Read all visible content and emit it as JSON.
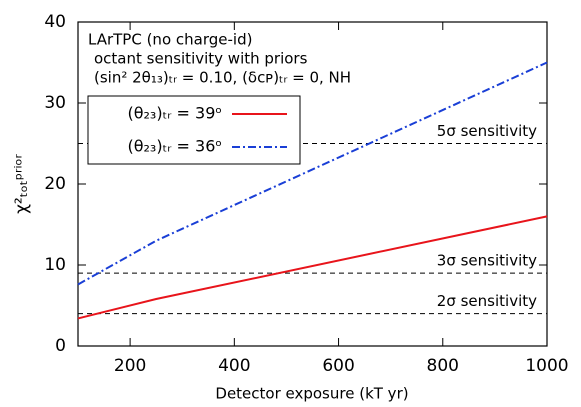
{
  "chart_data": {
    "type": "line",
    "annotations": [
      "LArTPC (no charge-id)",
      "octant sensitivity with priors",
      "(sin² 2θ₁₃)ₜᵣ = 0.10, (δᴄᴘ)ₜᵣ = 0, NH"
    ],
    "xlabel": "Detector exposure (kT yr)",
    "ylabel": "χ²ₜₒₜᵖʳⁱᵒʳ",
    "xlim": [
      100,
      1000
    ],
    "xticks": [
      200,
      400,
      600,
      800,
      1000
    ],
    "ylim": [
      0,
      40
    ],
    "yticks": [
      0,
      10,
      20,
      30,
      40
    ],
    "series": [
      {
        "name": "(θ₂₃)ₜᵣ = 39ᵒ",
        "color": "#e8141b",
        "dash": "solid",
        "x": [
          100,
          250,
          1000
        ],
        "values": [
          3.4,
          5.8,
          16
        ]
      },
      {
        "name": "(θ₂₃)ₜᵣ = 36ᵒ",
        "color": "#1a3fd6",
        "dash": "dashdot",
        "x": [
          100,
          250,
          1000
        ],
        "values": [
          7.6,
          13,
          35
        ]
      }
    ],
    "reference_lines": [
      {
        "label": "5σ sensitivity",
        "value": 25
      },
      {
        "label": "3σ sensitivity",
        "value": 9
      },
      {
        "label": "2σ sensitivity",
        "value": 4
      }
    ],
    "legend": "upper left"
  }
}
